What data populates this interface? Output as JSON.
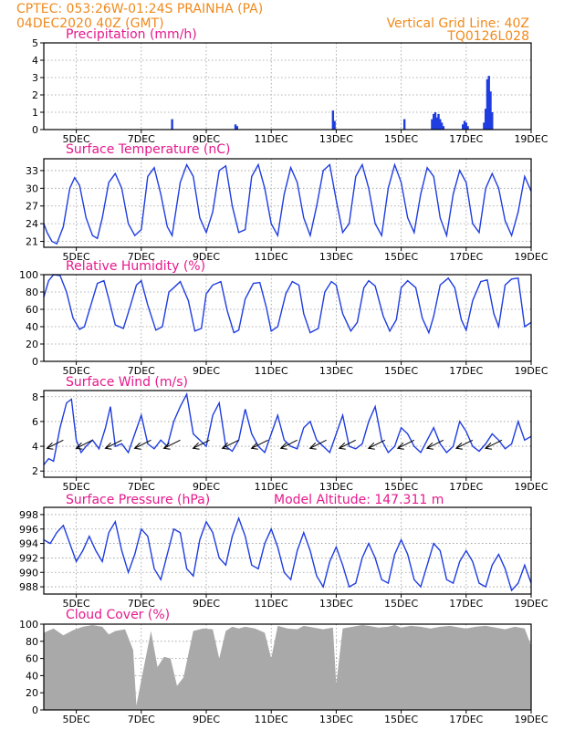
{
  "header": {
    "line1_left": "CPTEC:   053:26W-01:24S   PRAINHA (PA)",
    "line2_left": "04DEC2020 40Z (GMT)",
    "line1_right": "Vertical Grid Line: 40Z",
    "line2_right": "TQ0126L028"
  },
  "colors": {
    "header": "#f08a1c",
    "panel_title": "#e6198c",
    "line": "#1f3de0",
    "bar": "#1f3de0",
    "cloud": "#a9a9a9",
    "wind_arrow": "#000000"
  },
  "x_axis": {
    "unit": "day_of_dec",
    "range": [
      4.0,
      19.0
    ],
    "ticks": [
      5,
      7,
      9,
      11,
      13,
      15,
      17,
      19
    ],
    "tick_labels": [
      "5DEC",
      "7DEC",
      "9DEC",
      "11DEC",
      "13DEC",
      "15DEC",
      "17DEC",
      "19DEC"
    ]
  },
  "chart_data": [
    {
      "id": "precip",
      "type": "bar",
      "title": "Precipitation (mm/h)",
      "ylim": [
        0,
        5
      ],
      "yticks": [
        0,
        1,
        2,
        3,
        4,
        5
      ],
      "x": [
        7.95,
        9.9,
        9.95,
        12.9,
        12.95,
        15.1,
        15.95,
        16.0,
        16.05,
        16.1,
        16.15,
        16.2,
        16.25,
        16.3,
        16.9,
        16.95,
        17.0,
        17.05,
        17.55,
        17.6,
        17.65,
        17.7,
        17.75,
        17.8
      ],
      "values": [
        0.6,
        0.3,
        0.2,
        1.1,
        0.5,
        0.6,
        0.6,
        0.9,
        1.0,
        0.7,
        0.9,
        0.6,
        0.4,
        0.2,
        0.3,
        0.5,
        0.4,
        0.2,
        0.4,
        1.2,
        2.9,
        3.1,
        2.2,
        1.0
      ],
      "grid": true
    },
    {
      "id": "temp",
      "type": "line",
      "title": "Surface Temperature (nC)",
      "ylim": [
        20,
        35
      ],
      "yticks": [
        21,
        24,
        27,
        30,
        33
      ],
      "x": [
        4.0,
        4.1,
        4.25,
        4.4,
        4.6,
        4.8,
        4.95,
        5.1,
        5.3,
        5.5,
        5.65,
        5.8,
        6.0,
        6.2,
        6.4,
        6.6,
        6.8,
        7.0,
        7.2,
        7.4,
        7.6,
        7.8,
        7.95,
        8.2,
        8.4,
        8.6,
        8.8,
        9.0,
        9.2,
        9.4,
        9.6,
        9.8,
        10.0,
        10.2,
        10.4,
        10.6,
        10.8,
        11.0,
        11.2,
        11.4,
        11.6,
        11.8,
        12.0,
        12.2,
        12.4,
        12.6,
        12.8,
        13.0,
        13.2,
        13.4,
        13.6,
        13.8,
        14.0,
        14.2,
        14.4,
        14.6,
        14.8,
        15.0,
        15.2,
        15.4,
        15.6,
        15.8,
        16.0,
        16.2,
        16.4,
        16.6,
        16.8,
        17.0,
        17.2,
        17.4,
        17.6,
        17.8,
        18.0,
        18.2,
        18.4,
        18.6,
        18.8,
        19.0
      ],
      "values": [
        24.0,
        22.5,
        21.0,
        20.6,
        23.5,
        30.0,
        31.8,
        30.5,
        25.0,
        22.0,
        21.5,
        25.0,
        31.0,
        32.5,
        30.0,
        24.0,
        22.0,
        23.0,
        32.0,
        33.5,
        29.0,
        23.5,
        22.0,
        31.0,
        34.0,
        32.0,
        25.0,
        22.5,
        26.0,
        33.0,
        33.8,
        27.0,
        22.5,
        23.0,
        32.0,
        34.0,
        30.0,
        24.0,
        22.0,
        29.0,
        33.5,
        31.0,
        25.0,
        22.0,
        27.0,
        33.0,
        34.0,
        28.0,
        22.5,
        24.0,
        32.0,
        34.0,
        30.0,
        24.0,
        22.0,
        30.0,
        34.0,
        31.0,
        25.0,
        22.5,
        29.0,
        33.5,
        32.0,
        25.0,
        22.0,
        29.0,
        33.0,
        31.0,
        24.0,
        22.5,
        30.0,
        32.5,
        30.0,
        24.5,
        22.0,
        26.0,
        32.0,
        29.5
      ],
      "grid": true
    },
    {
      "id": "rh",
      "type": "line",
      "title": "Relative Humidity (%)",
      "ylim": [
        0,
        100
      ],
      "yticks": [
        0,
        20,
        40,
        60,
        80,
        100
      ],
      "x": [
        4.0,
        4.15,
        4.3,
        4.5,
        4.7,
        4.9,
        5.1,
        5.25,
        5.45,
        5.65,
        5.85,
        6.0,
        6.2,
        6.45,
        6.65,
        6.85,
        7.0,
        7.2,
        7.45,
        7.65,
        7.85,
        8.0,
        8.2,
        8.45,
        8.65,
        8.85,
        9.0,
        9.2,
        9.45,
        9.65,
        9.85,
        10.0,
        10.2,
        10.45,
        10.65,
        10.85,
        11.0,
        11.2,
        11.45,
        11.65,
        11.85,
        12.0,
        12.2,
        12.45,
        12.65,
        12.85,
        13.0,
        13.2,
        13.45,
        13.65,
        13.85,
        14.0,
        14.2,
        14.45,
        14.65,
        14.85,
        15.0,
        15.2,
        15.45,
        15.65,
        15.85,
        16.0,
        16.2,
        16.45,
        16.65,
        16.85,
        17.0,
        17.2,
        17.45,
        17.65,
        17.85,
        18.0,
        18.2,
        18.4,
        18.6,
        18.8,
        19.0
      ],
      "values": [
        74,
        93,
        100,
        99,
        80,
        50,
        37,
        40,
        65,
        90,
        93,
        72,
        42,
        38,
        62,
        88,
        93,
        65,
        36,
        40,
        80,
        85,
        92,
        70,
        35,
        38,
        78,
        88,
        92,
        58,
        33,
        36,
        72,
        90,
        91,
        62,
        35,
        40,
        78,
        92,
        88,
        55,
        33,
        38,
        80,
        92,
        88,
        55,
        35,
        45,
        85,
        93,
        87,
        52,
        35,
        48,
        85,
        93,
        85,
        50,
        33,
        52,
        88,
        96,
        85,
        48,
        36,
        70,
        92,
        94,
        55,
        40,
        88,
        95,
        96,
        40,
        45
      ],
      "grid": true
    },
    {
      "id": "wind",
      "type": "line",
      "title": "Surface Wind (m/s)",
      "ylim": [
        1.5,
        8.5
      ],
      "yticks": [
        2,
        4,
        6,
        8
      ],
      "x": [
        4.0,
        4.15,
        4.3,
        4.5,
        4.7,
        4.85,
        5.0,
        5.15,
        5.3,
        5.5,
        5.7,
        5.9,
        6.05,
        6.2,
        6.4,
        6.6,
        6.8,
        7.0,
        7.2,
        7.4,
        7.6,
        7.8,
        8.0,
        8.2,
        8.4,
        8.6,
        8.8,
        9.0,
        9.2,
        9.4,
        9.6,
        9.8,
        10.0,
        10.2,
        10.4,
        10.6,
        10.8,
        11.0,
        11.2,
        11.4,
        11.6,
        11.8,
        12.0,
        12.2,
        12.4,
        12.6,
        12.8,
        13.0,
        13.2,
        13.4,
        13.6,
        13.8,
        14.0,
        14.2,
        14.4,
        14.6,
        14.8,
        15.0,
        15.2,
        15.4,
        15.6,
        15.8,
        16.0,
        16.2,
        16.4,
        16.6,
        16.8,
        17.0,
        17.2,
        17.4,
        17.6,
        17.8,
        18.0,
        18.2,
        18.4,
        18.6,
        18.8,
        19.0
      ],
      "values": [
        2.5,
        3.0,
        2.8,
        5.5,
        7.5,
        7.8,
        4.5,
        3.5,
        4.0,
        4.5,
        3.8,
        5.5,
        7.2,
        4.0,
        4.2,
        3.5,
        5.0,
        6.5,
        4.2,
        3.8,
        4.5,
        4.0,
        6.0,
        7.2,
        8.2,
        5.0,
        4.5,
        4.0,
        6.5,
        7.5,
        4.0,
        3.6,
        4.5,
        7.0,
        5.0,
        4.0,
        3.5,
        5.0,
        6.5,
        4.5,
        4.0,
        3.8,
        5.5,
        6.0,
        4.5,
        4.0,
        3.5,
        5.0,
        6.5,
        4.0,
        3.8,
        4.2,
        6.0,
        7.2,
        4.5,
        3.5,
        4.0,
        5.5,
        5.0,
        4.0,
        3.5,
        4.5,
        5.5,
        4.2,
        3.5,
        4.0,
        6.0,
        5.2,
        4.0,
        3.6,
        4.2,
        5.0,
        4.5,
        3.8,
        4.2,
        6.0,
        4.5,
        4.8
      ],
      "grid": true,
      "arrows_x": [
        4.6,
        5.5,
        6.4,
        7.3,
        8.2,
        9.1,
        10.0,
        10.9,
        11.8,
        12.7,
        13.6,
        14.5,
        15.4,
        16.3,
        17.2,
        18.1
      ]
    },
    {
      "id": "pressure",
      "type": "line",
      "title": "Surface Pressure (hPa)",
      "subtitle": "Model Altitude: 147.311 m",
      "ylim": [
        987,
        999
      ],
      "yticks": [
        988,
        990,
        992,
        994,
        996,
        998
      ],
      "x": [
        4.0,
        4.2,
        4.4,
        4.6,
        4.8,
        5.0,
        5.2,
        5.4,
        5.6,
        5.8,
        6.0,
        6.2,
        6.4,
        6.6,
        6.8,
        7.0,
        7.2,
        7.4,
        7.6,
        7.8,
        8.0,
        8.2,
        8.4,
        8.6,
        8.8,
        9.0,
        9.2,
        9.4,
        9.6,
        9.8,
        10.0,
        10.2,
        10.4,
        10.6,
        10.8,
        11.0,
        11.2,
        11.4,
        11.6,
        11.8,
        12.0,
        12.2,
        12.4,
        12.6,
        12.8,
        13.0,
        13.2,
        13.4,
        13.6,
        13.8,
        14.0,
        14.2,
        14.4,
        14.6,
        14.8,
        15.0,
        15.2,
        15.4,
        15.6,
        15.8,
        16.0,
        16.2,
        16.4,
        16.6,
        16.8,
        17.0,
        17.2,
        17.4,
        17.6,
        17.8,
        18.0,
        18.2,
        18.4,
        18.6,
        18.8,
        19.0
      ],
      "values": [
        994.5,
        994.0,
        995.5,
        996.5,
        994.0,
        991.5,
        993.0,
        995.0,
        993.0,
        991.5,
        995.5,
        997.0,
        993.0,
        990.0,
        992.5,
        996.0,
        995.0,
        990.5,
        989.0,
        992.5,
        996.0,
        995.5,
        990.5,
        989.5,
        994.5,
        997.0,
        995.5,
        992.0,
        991.0,
        995.0,
        997.5,
        995.0,
        991.0,
        990.5,
        994.0,
        996.0,
        993.5,
        990.0,
        989.0,
        993.0,
        995.5,
        993.0,
        989.5,
        988.0,
        991.5,
        993.5,
        991.0,
        988.0,
        988.5,
        992.0,
        994.0,
        992.0,
        989.0,
        988.5,
        992.5,
        994.5,
        992.5,
        989.0,
        988.0,
        991.0,
        994.0,
        993.0,
        989.0,
        988.5,
        991.5,
        993.0,
        991.5,
        988.5,
        988.0,
        991.0,
        992.5,
        990.5,
        987.5,
        988.5,
        991.0,
        988.5
      ],
      "grid": true
    },
    {
      "id": "cloud",
      "type": "area",
      "title": "Cloud Cover (%)",
      "ylim": [
        0,
        100
      ],
      "yticks": [
        0,
        20,
        40,
        60,
        80,
        100
      ],
      "x": [
        4.0,
        4.3,
        4.6,
        4.9,
        5.2,
        5.5,
        5.8,
        6.0,
        6.2,
        6.5,
        6.75,
        6.85,
        7.0,
        7.3,
        7.5,
        7.7,
        7.9,
        8.1,
        8.3,
        8.6,
        8.9,
        9.2,
        9.4,
        9.6,
        9.8,
        10.0,
        10.2,
        10.5,
        10.8,
        11.0,
        11.2,
        11.5,
        11.8,
        12.0,
        12.3,
        12.6,
        12.9,
        13.0,
        13.2,
        13.5,
        13.8,
        14.0,
        14.3,
        14.6,
        14.8,
        15.0,
        15.3,
        15.6,
        15.9,
        16.2,
        16.5,
        16.8,
        17.0,
        17.3,
        17.6,
        17.9,
        18.2,
        18.5,
        18.8,
        19.0
      ],
      "values": [
        90,
        95,
        87,
        93,
        97,
        99,
        97,
        88,
        92,
        94,
        70,
        5,
        35,
        92,
        50,
        62,
        60,
        28,
        38,
        92,
        95,
        94,
        60,
        92,
        97,
        95,
        97,
        95,
        90,
        60,
        98,
        95,
        94,
        98,
        96,
        94,
        96,
        30,
        95,
        97,
        99,
        98,
        96,
        97,
        99,
        96,
        98,
        97,
        95,
        97,
        98,
        96,
        95,
        97,
        98,
        96,
        94,
        97,
        95,
        75
      ],
      "grid": true
    }
  ]
}
